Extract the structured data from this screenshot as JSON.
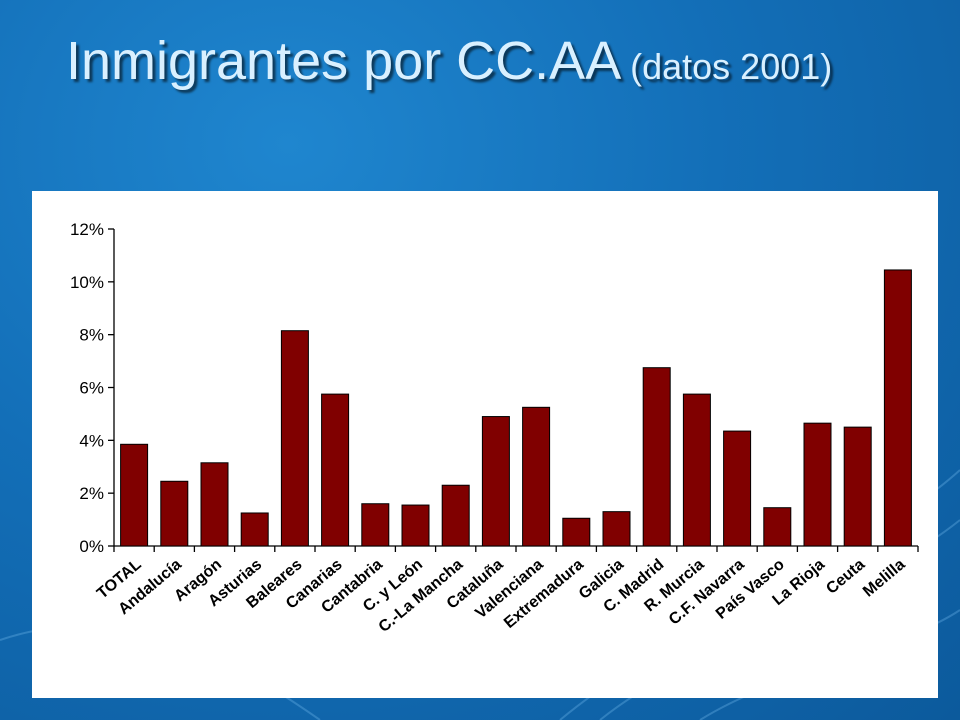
{
  "slide": {
    "title_main": "Inmigrantes por CC.AA",
    "title_sub": "(datos 2001)"
  },
  "colors": {
    "background": "#136fb8",
    "title": "#d9f0ff",
    "bar": "#800000",
    "panel": "#ffffff"
  },
  "chart_data": {
    "type": "bar",
    "title": "",
    "xlabel": "",
    "ylabel": "",
    "ylim": [
      0,
      12
    ],
    "yticks": [
      0,
      2,
      4,
      6,
      8,
      10,
      12
    ],
    "ytick_labels": [
      "0%",
      "2%",
      "4%",
      "6%",
      "8%",
      "10%",
      "12%"
    ],
    "grid": false,
    "legend": "none",
    "categories": [
      "TOTAL",
      "Andalucía",
      "Aragón",
      "Asturias",
      "Baleares",
      "Canarias",
      "Cantabria",
      "C. y León",
      "C.-La Mancha",
      "Cataluña",
      "Valenciana",
      "Extremadura",
      "Galicia",
      "C. Madrid",
      "R. Murcia",
      "C.F. Navarra",
      "País Vasco",
      "La Rioja",
      "Ceuta",
      "Melilla"
    ],
    "values": [
      3.85,
      2.45,
      3.15,
      1.25,
      8.15,
      5.75,
      1.6,
      1.55,
      2.3,
      4.9,
      5.25,
      1.05,
      1.3,
      6.75,
      5.75,
      4.35,
      1.45,
      4.65,
      4.5,
      10.45
    ],
    "unit": "%"
  }
}
